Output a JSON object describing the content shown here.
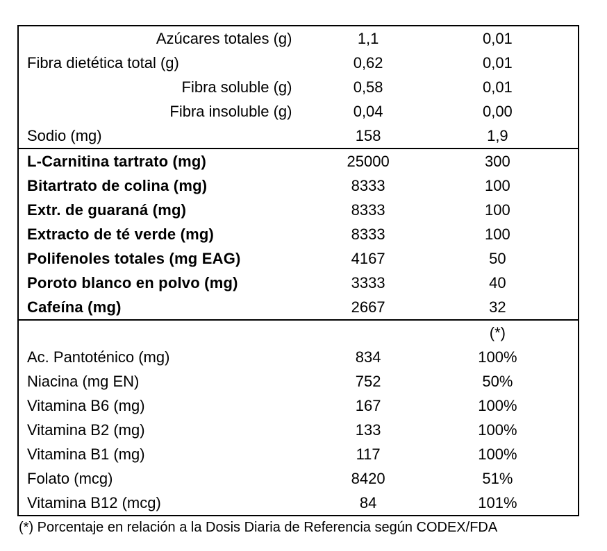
{
  "colors": {
    "background": "#ffffff",
    "text": "#000000",
    "border": "#000000"
  },
  "table": {
    "sections": [
      {
        "name": "basic-nutrients",
        "rows": [
          {
            "label": "Azúcares totales (g)",
            "value": "1,1",
            "pct": "0,01"
          },
          {
            "label": "Fibra dietética total (g)",
            "value": "0,62",
            "pct": "0,01"
          },
          {
            "label": "Fibra soluble (g)",
            "value": "0,58",
            "pct": "0,01"
          },
          {
            "label": "Fibra insoluble (g)",
            "value": "0,04",
            "pct": "0,00"
          },
          {
            "label": "Sodio (mg)",
            "value": "158",
            "pct": "1,9"
          }
        ]
      },
      {
        "name": "active-ingredients",
        "rows": [
          {
            "label": "L-Carnitina tartrato (mg)",
            "value": "25000",
            "pct": "300"
          },
          {
            "label": "Bitartrato de colina (mg)",
            "value": "8333",
            "pct": "100"
          },
          {
            "label": "Extr. de guaraná (mg)",
            "value": "8333",
            "pct": "100"
          },
          {
            "label": "Extracto de té verde (mg)",
            "value": "8333",
            "pct": "100"
          },
          {
            "label": "Polifenoles totales (mg EAG)",
            "value": "4167",
            "pct": "50"
          },
          {
            "label": "Poroto blanco en polvo (mg)",
            "value": "3333",
            "pct": "40"
          },
          {
            "label": "Cafeína (mg)",
            "value": "2667",
            "pct": "32"
          }
        ]
      },
      {
        "name": "vitamins",
        "rows": [
          {
            "label": "",
            "value": "",
            "pct": "(*)"
          },
          {
            "label": "Ac. Pantoténico (mg)",
            "value": "834",
            "pct": "100%"
          },
          {
            "label": "Niacina (mg EN)",
            "value": "752",
            "pct": "50%"
          },
          {
            "label": "Vitamina B6 (mg)",
            "value": "167",
            "pct": "100%"
          },
          {
            "label": "Vitamina B2 (mg)",
            "value": "133",
            "pct": "100%"
          },
          {
            "label": "Vitamina B1 (mg)",
            "value": "117",
            "pct": "100%"
          },
          {
            "label": "Folato (mcg)",
            "value": "8420",
            "pct": "51%"
          },
          {
            "label": "Vitamina B12 (mcg)",
            "value": "84",
            "pct": "101%"
          }
        ]
      }
    ],
    "footnote": "(*) Porcentaje en relación a la Dosis Diaria de Referencia según CODEX/FDA"
  }
}
